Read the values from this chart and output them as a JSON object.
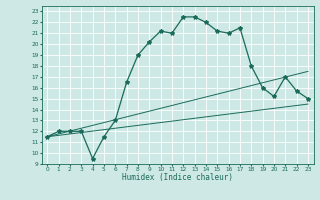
{
  "xlabel": "Humidex (Indice chaleur)",
  "xlim": [
    -0.5,
    23.5
  ],
  "ylim": [
    9,
    23.5
  ],
  "yticks": [
    9,
    10,
    11,
    12,
    13,
    14,
    15,
    16,
    17,
    18,
    19,
    20,
    21,
    22,
    23
  ],
  "xticks": [
    0,
    1,
    2,
    3,
    4,
    5,
    6,
    7,
    8,
    9,
    10,
    11,
    12,
    13,
    14,
    15,
    16,
    17,
    18,
    19,
    20,
    21,
    22,
    23
  ],
  "bg_color": "#cde8e5",
  "grid_color": "#ffffff",
  "line_color": "#1a6b5a",
  "main_x": [
    0,
    1,
    2,
    3,
    4,
    5,
    6,
    7,
    8,
    9,
    10,
    11,
    12,
    13,
    14,
    15,
    16,
    17,
    18,
    19,
    20,
    21,
    22,
    23
  ],
  "main_y": [
    11.5,
    12.0,
    12.0,
    12.0,
    9.5,
    11.5,
    13.0,
    16.5,
    19.0,
    20.2,
    21.2,
    21.0,
    22.5,
    22.5,
    22.0,
    21.2,
    21.0,
    21.5,
    18.0,
    16.0,
    15.2,
    17.0,
    15.7,
    15.0
  ],
  "line2_x": [
    0,
    23
  ],
  "line2_y": [
    11.5,
    14.5
  ],
  "line3_x": [
    0,
    23
  ],
  "line3_y": [
    11.5,
    17.5
  ],
  "marker": "*",
  "markersize": 3.0,
  "linewidth": 0.9
}
